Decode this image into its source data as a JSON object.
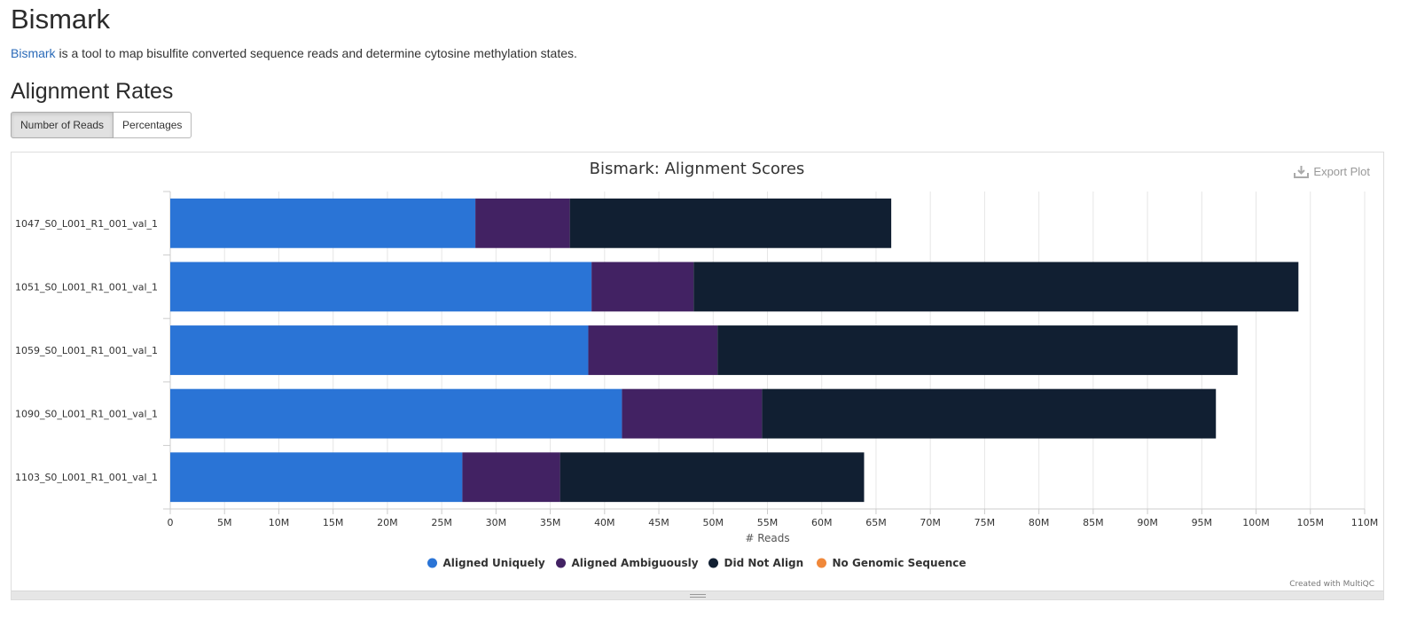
{
  "page": {
    "title": "Bismark",
    "intro_link": "Bismark",
    "intro_text": " is a tool to map bisulfite converted sequence reads and determine cytosine methylation states.",
    "section_title": "Alignment Rates"
  },
  "toggle": {
    "reads_label": "Number of Reads",
    "percent_label": "Percentages",
    "active": "reads"
  },
  "plot": {
    "export_label": "Export Plot",
    "credit": "Created with MultiQC"
  },
  "chart_data": {
    "type": "bar",
    "orientation": "horizontal",
    "stacked": true,
    "title": "Bismark: Alignment Scores",
    "xlabel": "# Reads",
    "ylabel": "",
    "xlim": [
      0,
      110000000
    ],
    "x_tick_step": 5000000,
    "x_tick_labels": [
      "0",
      "5M",
      "10M",
      "15M",
      "20M",
      "25M",
      "30M",
      "35M",
      "40M",
      "45M",
      "50M",
      "55M",
      "60M",
      "65M",
      "70M",
      "75M",
      "80M",
      "85M",
      "90M",
      "95M",
      "100M",
      "105M",
      "110M"
    ],
    "grid": true,
    "legend_position": "bottom",
    "categories": [
      "1047_S0_L001_R1_001_val_1",
      "1051_S0_L001_R1_001_val_1",
      "1059_S0_L001_R1_001_val_1",
      "1090_S0_L001_R1_001_val_1",
      "1103_S0_L001_R1_001_val_1"
    ],
    "series": [
      {
        "name": "Aligned Uniquely",
        "color": "#2A74D6",
        "values": [
          28100000,
          38800000,
          38500000,
          41600000,
          26900000
        ]
      },
      {
        "name": "Aligned Ambiguously",
        "color": "#422263",
        "values": [
          8700000,
          9400000,
          11900000,
          12900000,
          9000000
        ]
      },
      {
        "name": "Did Not Align",
        "color": "#111F32",
        "values": [
          29600000,
          55700000,
          47900000,
          41800000,
          28000000
        ]
      },
      {
        "name": "No Genomic Sequence",
        "color": "#F0883A",
        "values": [
          0,
          0,
          0,
          0,
          0
        ]
      }
    ]
  }
}
